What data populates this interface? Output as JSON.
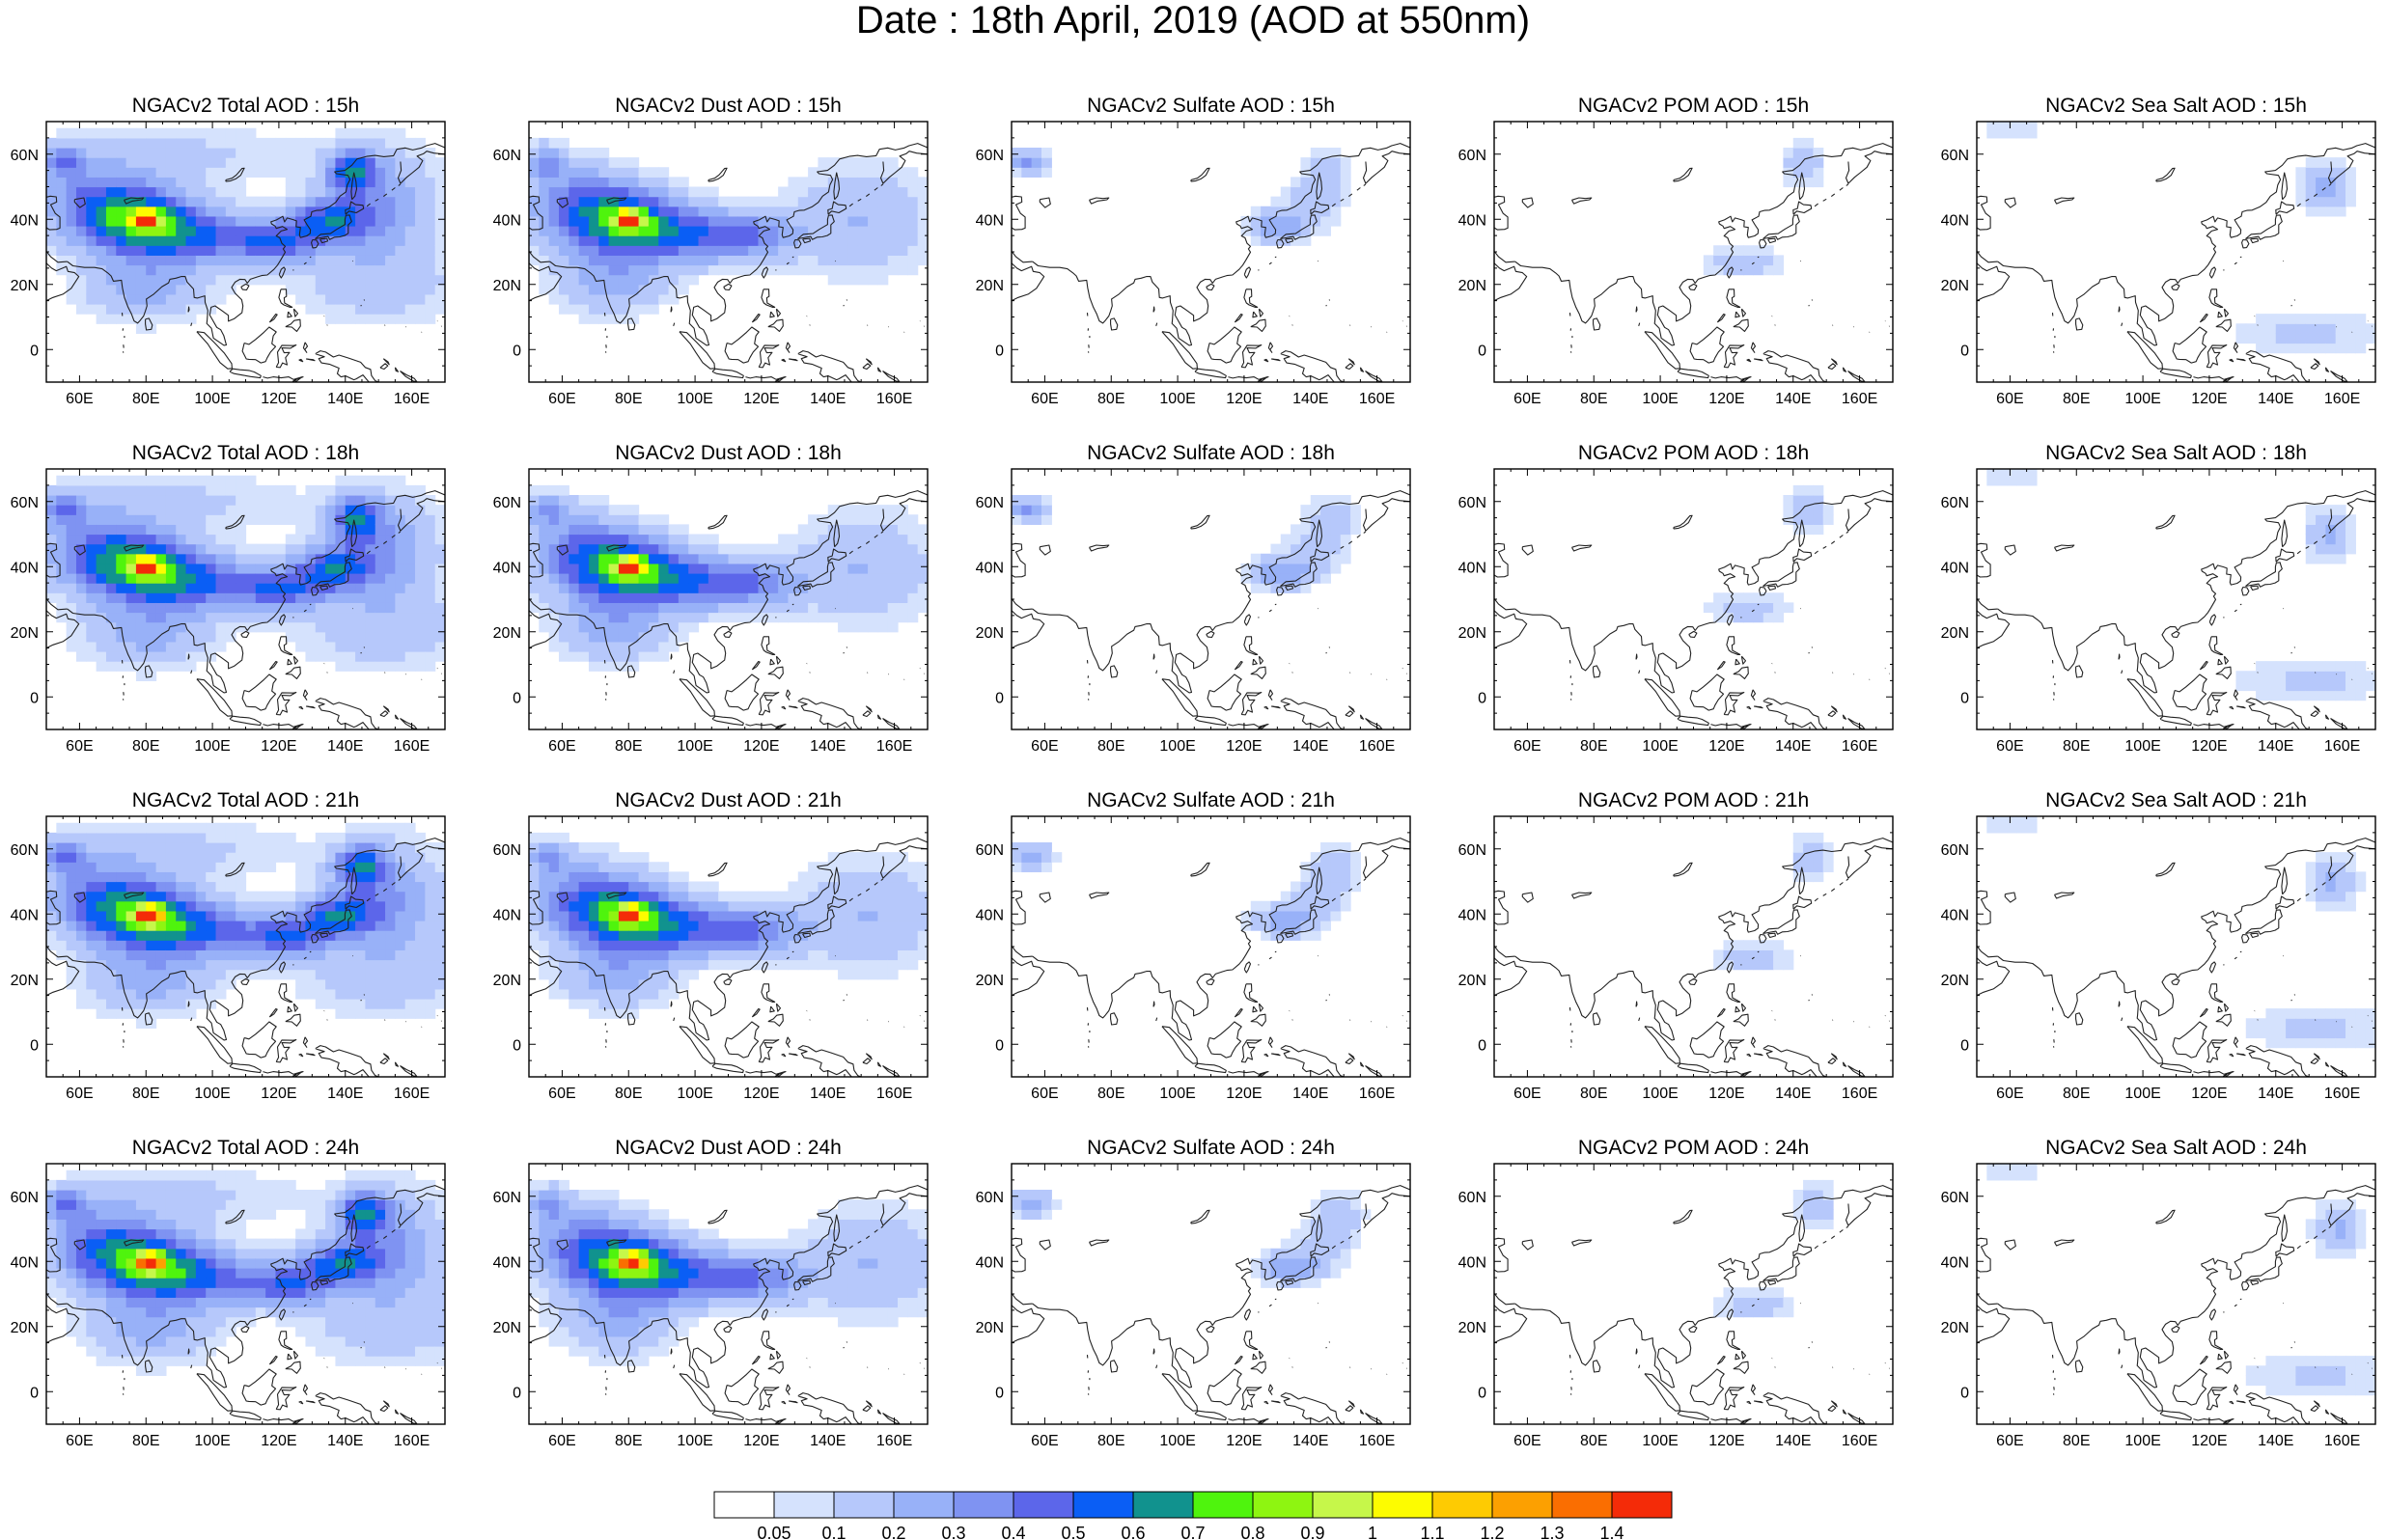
{
  "figure": {
    "title": "Date : 18th April, 2019 (AOD at 550nm)"
  },
  "map_axes": {
    "lon_range": [
      50,
      170
    ],
    "lat_range": [
      -10,
      70
    ],
    "lon_ticks": [
      60,
      80,
      100,
      120,
      140,
      160
    ],
    "lat_ticks": [
      0,
      20,
      40,
      60
    ],
    "lon_tick_labels": [
      "60E",
      "80E",
      "100E",
      "120E",
      "140E",
      "160E"
    ],
    "lat_tick_labels": [
      "0",
      "20N",
      "40N",
      "60N"
    ]
  },
  "panels": [
    {
      "title": "NGACv2 Total AOD : 15h",
      "species": "total",
      "hour": 15
    },
    {
      "title": "NGACv2 Dust AOD : 15h",
      "species": "dust",
      "hour": 15
    },
    {
      "title": "NGACv2 Sulfate AOD : 15h",
      "species": "sulfate",
      "hour": 15
    },
    {
      "title": "NGACv2 POM AOD : 15h",
      "species": "pom",
      "hour": 15
    },
    {
      "title": "NGACv2 Sea Salt AOD : 15h",
      "species": "seasalt",
      "hour": 15
    },
    {
      "title": "NGACv2 Total AOD : 18h",
      "species": "total",
      "hour": 18
    },
    {
      "title": "NGACv2 Dust AOD : 18h",
      "species": "dust",
      "hour": 18
    },
    {
      "title": "NGACv2 Sulfate AOD : 18h",
      "species": "sulfate",
      "hour": 18
    },
    {
      "title": "NGACv2 POM AOD : 18h",
      "species": "pom",
      "hour": 18
    },
    {
      "title": "NGACv2 Sea Salt AOD : 18h",
      "species": "seasalt",
      "hour": 18
    },
    {
      "title": "NGACv2 Total AOD : 21h",
      "species": "total",
      "hour": 21
    },
    {
      "title": "NGACv2 Dust AOD : 21h",
      "species": "dust",
      "hour": 21
    },
    {
      "title": "NGACv2 Sulfate AOD : 21h",
      "species": "sulfate",
      "hour": 21
    },
    {
      "title": "NGACv2 POM AOD : 21h",
      "species": "pom",
      "hour": 21
    },
    {
      "title": "NGACv2 Sea Salt AOD : 21h",
      "species": "seasalt",
      "hour": 21
    },
    {
      "title": "NGACv2 Total AOD : 24h",
      "species": "total",
      "hour": 24
    },
    {
      "title": "NGACv2 Dust AOD : 24h",
      "species": "dust",
      "hour": 24
    },
    {
      "title": "NGACv2 Sulfate AOD : 24h",
      "species": "sulfate",
      "hour": 24
    },
    {
      "title": "NGACv2 POM AOD : 24h",
      "species": "pom",
      "hour": 24
    },
    {
      "title": "NGACv2 Sea Salt  AOD : 24h",
      "species": "seasalt",
      "hour": 24
    }
  ],
  "colorbar": {
    "labels": [
      "0.05",
      "0.1",
      "0.2",
      "0.3",
      "0.4",
      "0.5",
      "0.6",
      "0.7",
      "0.8",
      "0.9",
      "1",
      "1.1",
      "1.2",
      "1.3",
      "1.4"
    ],
    "colors": [
      "#ffffff",
      "#d5e2fd",
      "#b6c8fb",
      "#98b1f8",
      "#7f93f2",
      "#5c66ea",
      "#0a5ef5",
      "#11928e",
      "#4ff40d",
      "#8ef511",
      "#c6f74a",
      "#fdfc00",
      "#fecb02",
      "#fca001",
      "#fa6e01",
      "#f42b08"
    ]
  }
}
